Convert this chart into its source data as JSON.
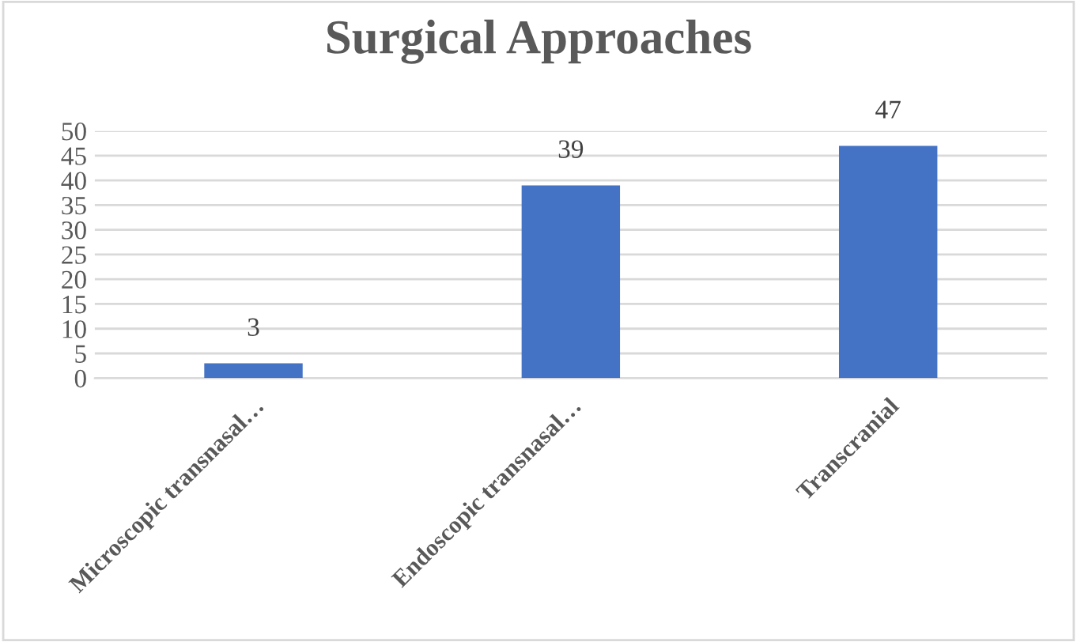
{
  "chart_data": {
    "type": "bar",
    "title": "Surgical Approaches",
    "categories": [
      "Microscopic transnasal…",
      "Endoscopic transnasal…",
      "Transcranial"
    ],
    "values": [
      3,
      39,
      47
    ],
    "color": "#4472c4",
    "ylim": [
      0,
      50
    ],
    "yticks": [
      0,
      5,
      10,
      15,
      20,
      25,
      30,
      35,
      40,
      45,
      50
    ],
    "grid": "y",
    "data_labels": true
  }
}
